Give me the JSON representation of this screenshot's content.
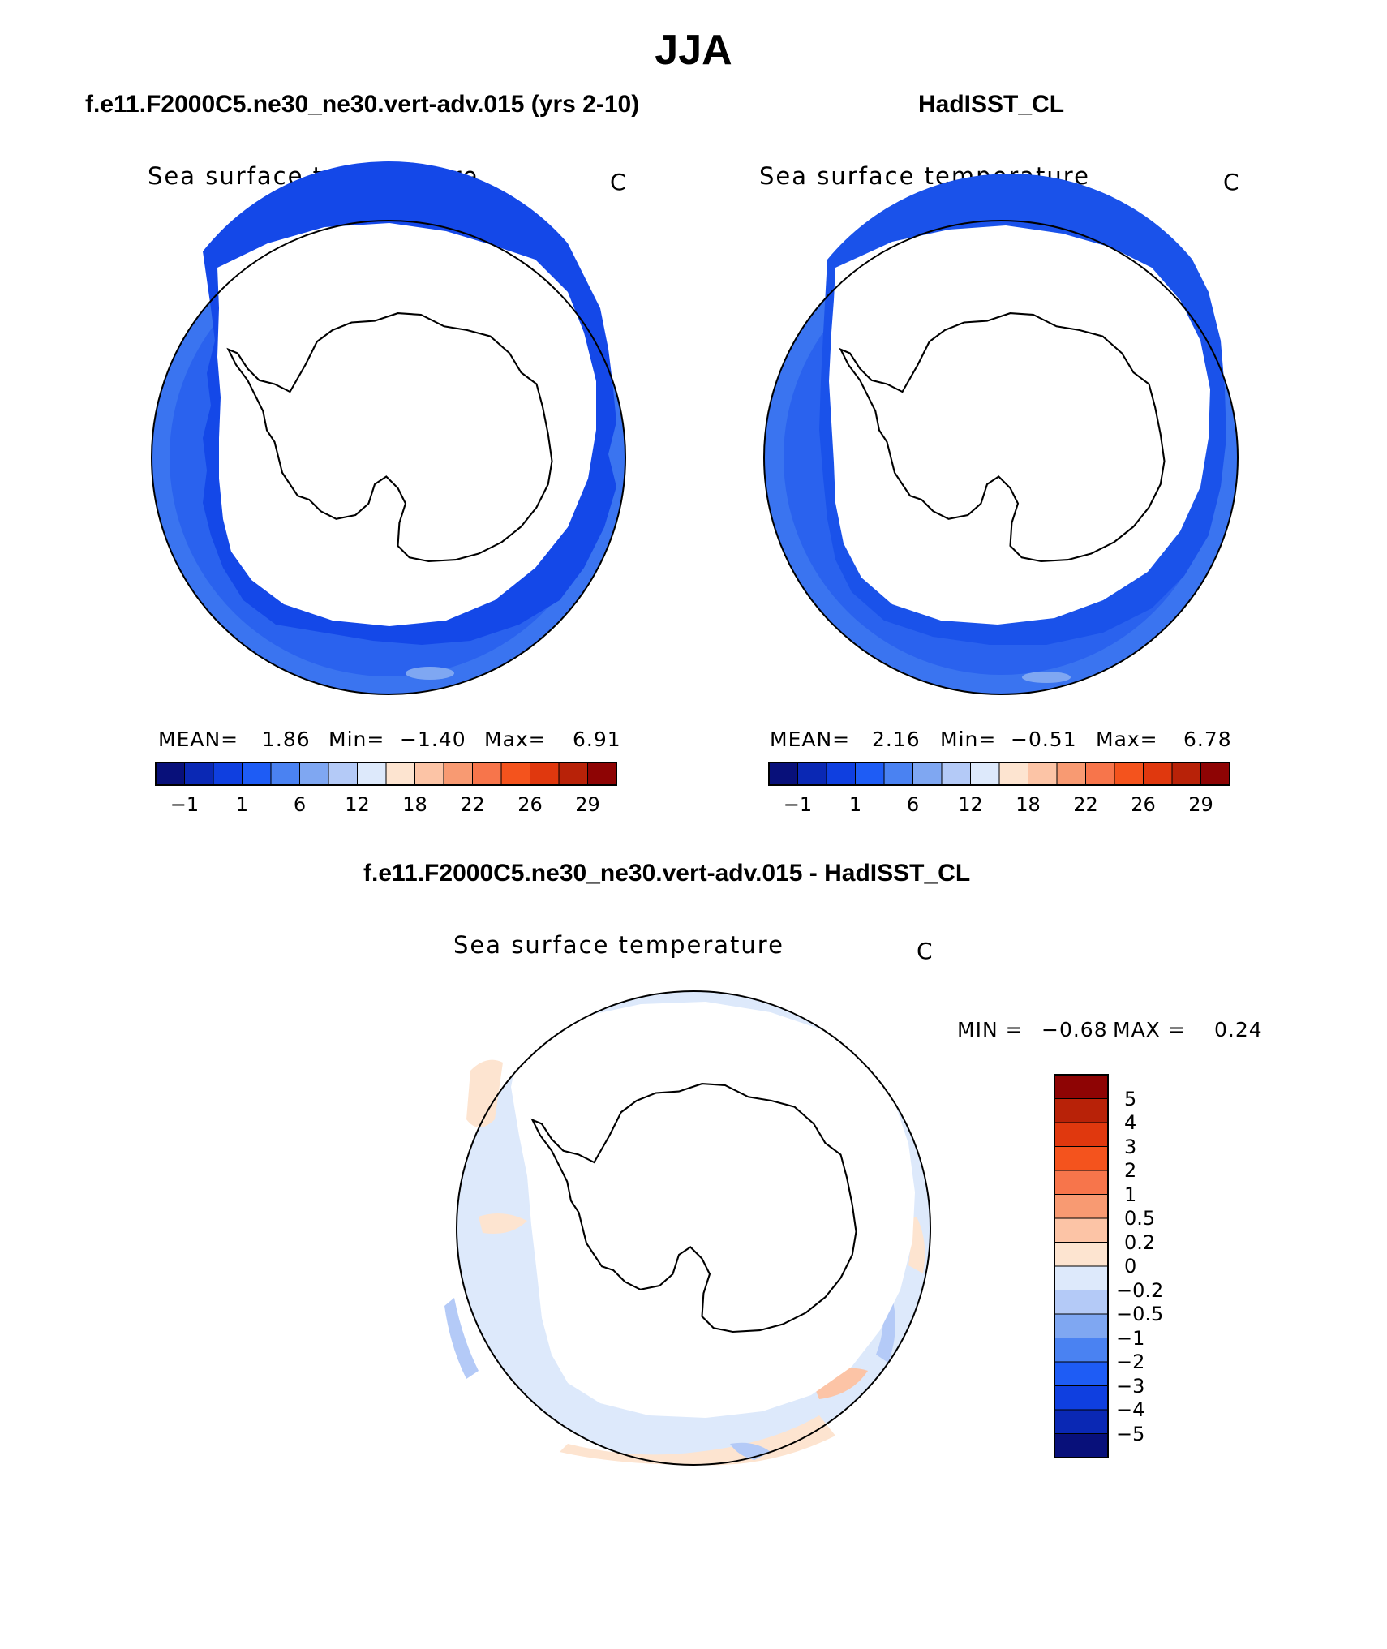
{
  "title": "JJA",
  "panels": [
    {
      "case": "f.e11.F2000C5.ne30_ne30.vert-adv.015 (yrs 2-10)",
      "variable": "Sea surface temperature",
      "units": "C",
      "stats": {
        "mean_label": "MEAN=",
        "mean": "1.86",
        "min_label": "Min=",
        "min": "−1.40",
        "max_label": "Max=",
        "max": "6.91"
      },
      "colorbar_ticks": [
        "−1",
        "1",
        "6",
        "12",
        "18",
        "22",
        "26",
        "29"
      ]
    },
    {
      "case": "HadISST_CL",
      "variable": "Sea surface temperature",
      "units": "C",
      "stats": {
        "mean_label": "MEAN=",
        "mean": "2.16",
        "min_label": "Min=",
        "min": "−0.51",
        "max_label": "Max=",
        "max": "6.78"
      },
      "colorbar_ticks": [
        "−1",
        "1",
        "6",
        "12",
        "18",
        "22",
        "26",
        "29"
      ]
    },
    {
      "case": "f.e11.F2000C5.ne30_ne30.vert-adv.015 - HadISST_CL",
      "variable": "Sea surface temperature",
      "units": "C",
      "stats": {
        "min_label": "MIN =",
        "min": "−0.68",
        "max_label": "MAX =",
        "max": "0.24"
      },
      "colorbar_ticks": [
        "5",
        "4",
        "3",
        "2",
        "1",
        "0.5",
        "0.2",
        "0",
        "−0.2",
        "−0.5",
        "−1",
        "−2",
        "−3",
        "−4",
        "−5"
      ]
    }
  ],
  "colors": {
    "abs_scale": [
      "#08107a",
      "#0a28b4",
      "#0f3fe0",
      "#1e5cf5",
      "#4a82f2",
      "#7fa7f2",
      "#b4caf7",
      "#dde9fb",
      "#fde4d0",
      "#fcc4a6",
      "#f89a72",
      "#f7754b",
      "#f4531d",
      "#e0380e",
      "#b82208",
      "#8e0404"
    ],
    "diff_scale": [
      "#8e0404",
      "#b82208",
      "#e0380e",
      "#f4531d",
      "#f7754b",
      "#f89a72",
      "#fcc4a6",
      "#fde4d0",
      "#dde9fb",
      "#b4caf7",
      "#7fa7f2",
      "#4a82f2",
      "#1e5cf5",
      "#0f3fe0",
      "#0a28b4",
      "#08107a"
    ]
  }
}
